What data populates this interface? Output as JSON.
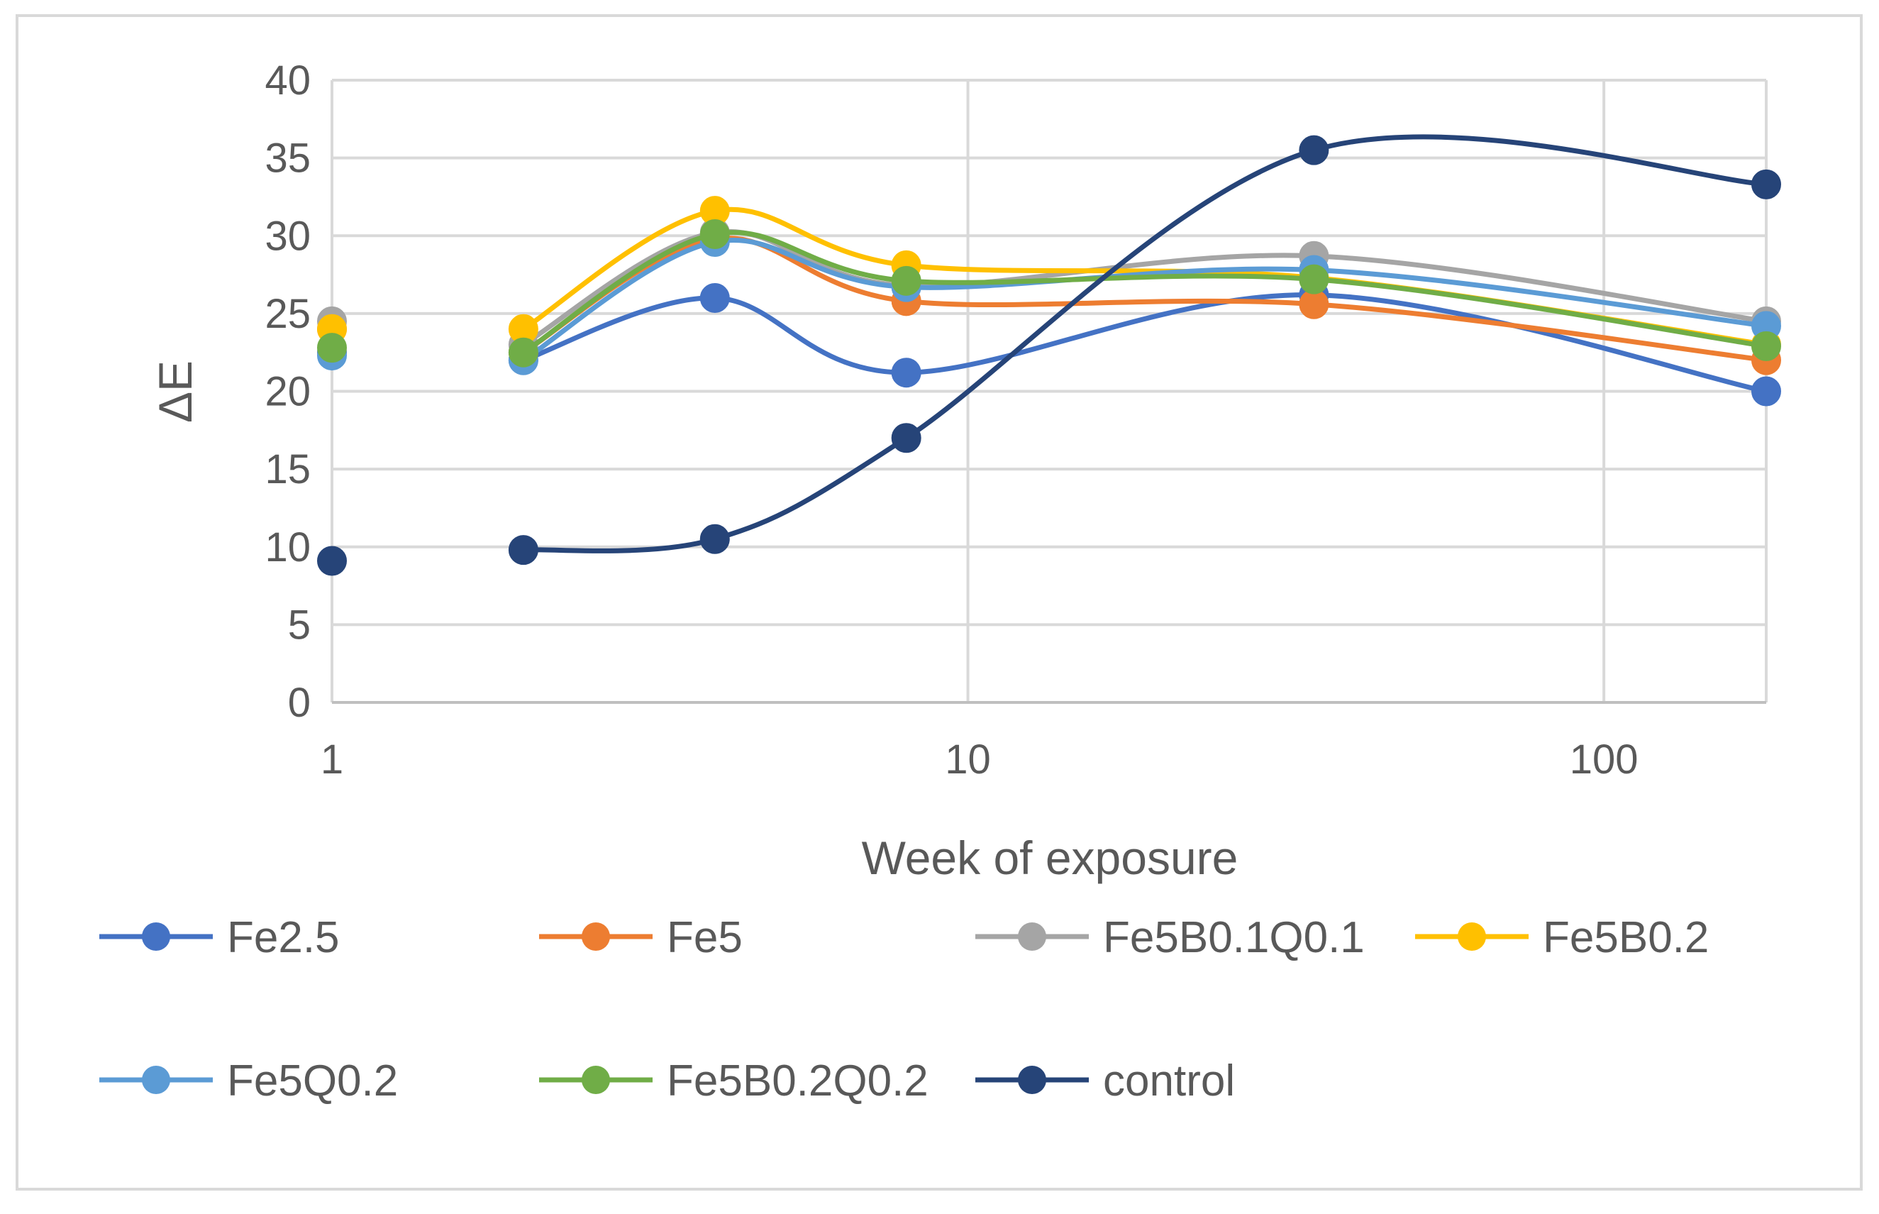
{
  "chart_data": {
    "type": "line",
    "smooth": true,
    "title": "",
    "xlabel": "Week of exposure",
    "ylabel": "ΔE",
    "xscale": "log",
    "xlim": [
      1,
      180
    ],
    "ylim": [
      0,
      40
    ],
    "yticks": [
      0,
      5,
      10,
      15,
      20,
      25,
      30,
      35,
      40
    ],
    "xticks": [
      1,
      10,
      100
    ],
    "grid": true,
    "legend_position": "bottom",
    "x": [
      1,
      2,
      4,
      8,
      35,
      180
    ],
    "series": [
      {
        "name": "Fe2.5",
        "color": "#4472c4",
        "values": [
          22.5,
          22.0,
          26.0,
          21.2,
          26.2,
          20.0
        ]
      },
      {
        "name": "Fe5",
        "color": "#ed7d31",
        "values": [
          24.0,
          22.5,
          29.8,
          25.8,
          25.6,
          22.0
        ]
      },
      {
        "name": "Fe5B0.1Q0.1",
        "color": "#a5a5a5",
        "values": [
          24.5,
          23.0,
          30.2,
          26.8,
          28.7,
          24.5
        ]
      },
      {
        "name": "Fe5B0.2",
        "color": "#ffc000",
        "values": [
          24.0,
          24.0,
          31.6,
          28.1,
          27.3,
          23.0
        ]
      },
      {
        "name": "Fe5Q0.2",
        "color": "#5b9bd5",
        "values": [
          22.3,
          22.0,
          29.6,
          26.7,
          27.8,
          24.2
        ]
      },
      {
        "name": "Fe5B0.2Q0.2",
        "color": "#70ad47",
        "values": [
          22.8,
          22.5,
          30.1,
          27.1,
          27.2,
          22.9
        ]
      },
      {
        "name": "control",
        "color": "#264478",
        "values": [
          9.1,
          9.8,
          10.5,
          17.0,
          35.5,
          33.3
        ]
      }
    ]
  }
}
